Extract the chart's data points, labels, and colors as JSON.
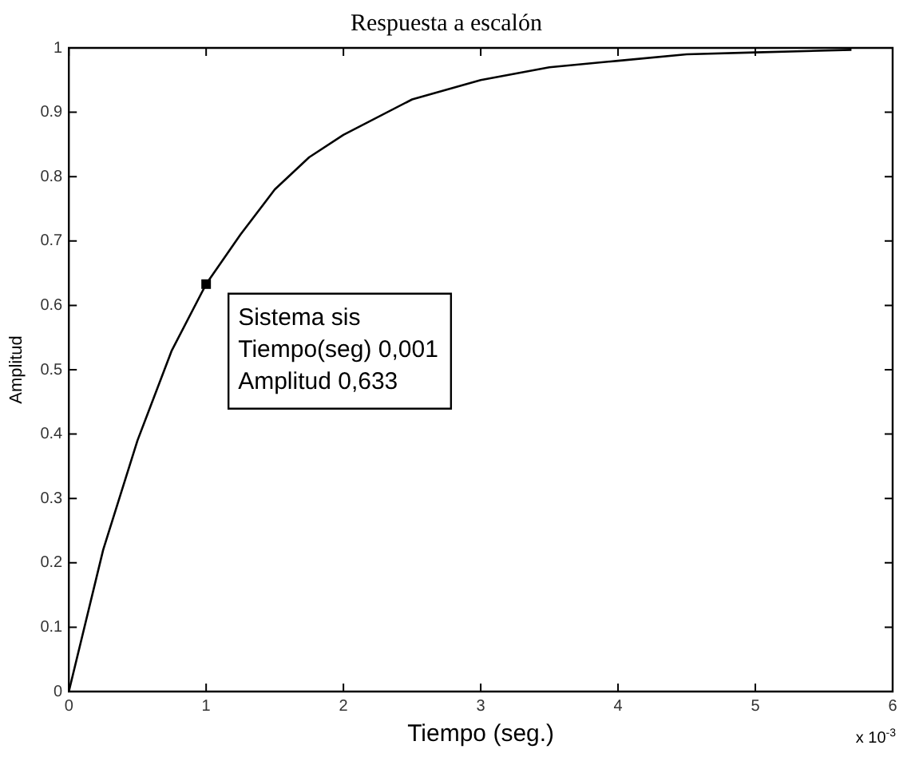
{
  "chart_data": {
    "type": "line",
    "title": "Respuesta a escalón",
    "xlabel": "Tiempo (seg.)",
    "ylabel": "Amplitud",
    "x": [
      0,
      0.25,
      0.5,
      0.75,
      1,
      1.25,
      1.5,
      1.75,
      2,
      2.5,
      3,
      3.5,
      4,
      4.5,
      5,
      5.7
    ],
    "series": [
      {
        "color": "#000000",
        "values": [
          0,
          0.22,
          0.39,
          0.53,
          0.633,
          0.71,
          0.78,
          0.83,
          0.865,
          0.92,
          0.95,
          0.97,
          0.98,
          0.99,
          0.993,
          0.997
        ]
      }
    ],
    "xlim": [
      0,
      6
    ],
    "xticks": [
      0,
      1,
      2,
      3,
      4,
      5,
      6
    ],
    "ylim": [
      0,
      1
    ],
    "yticks": [
      0,
      0.1,
      0.2,
      0.3,
      0.4,
      0.5,
      0.6,
      0.7,
      0.8,
      0.9,
      1
    ],
    "grid": false,
    "legend": false,
    "marker": "none",
    "line_style": "solid",
    "annotations": [
      {
        "text": "Sistema sis\nTiempo(seg) 0,001\nAmplitud 0,633",
        "x": 1,
        "y": 0.633
      },
      "x 10$^{-3}$"
    ]
  }
}
